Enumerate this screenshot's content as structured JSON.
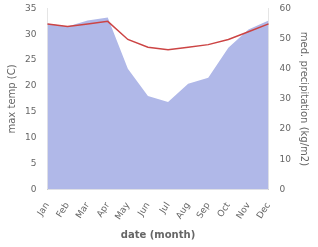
{
  "chart_data": {
    "type": "line",
    "categories": [
      "Jan",
      "Feb",
      "Mar",
      "Apr",
      "May",
      "Jun",
      "Jul",
      "Aug",
      "Sep",
      "Oct",
      "Nov",
      "Dec"
    ],
    "xlabel": "date (month)",
    "ylabel": "max temp (C)",
    "y2label": "med. precipitation (kg/m2)",
    "ylim": [
      0,
      35
    ],
    "yticks": [
      0,
      5,
      10,
      15,
      20,
      25,
      30,
      35
    ],
    "y2lim": [
      0,
      60
    ],
    "y2ticks": [
      0,
      10,
      20,
      30,
      40,
      50,
      60
    ],
    "grid": false,
    "series": [
      {
        "type": "area",
        "axis": "y2",
        "color": "#b0b8e8",
        "values": [
          55.0,
          54.0,
          56.0,
          57.0,
          40.0,
          31.0,
          29.0,
          35.0,
          37.0,
          47.0,
          53.0,
          56.0
        ]
      },
      {
        "type": "line",
        "color": "#cc4444",
        "values": [
          32.0,
          31.5,
          32.0,
          32.5,
          29.0,
          27.5,
          27.0,
          27.5,
          28.0,
          29.0,
          30.5,
          32.0
        ]
      }
    ]
  }
}
